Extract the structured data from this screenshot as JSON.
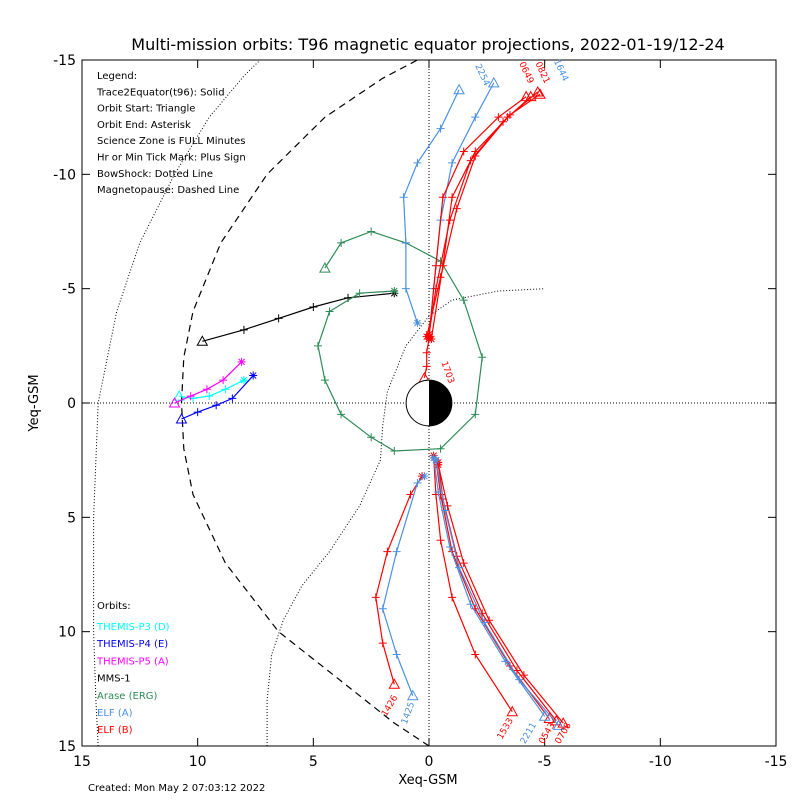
{
  "chart_data": {
    "type": "line",
    "title": "Multi-mission orbits: T96 magnetic equator projections, 2022-01-19/12-24",
    "xlabel": "Xeq-GSM",
    "ylabel": "Yeq-GSM",
    "xlim": [
      15,
      -15
    ],
    "ylim": [
      15,
      -15
    ],
    "x_ticks": [
      15,
      10,
      5,
      0,
      -5,
      -10,
      -15
    ],
    "x_tick_labels": [
      "15",
      "10",
      "5",
      "0",
      "-5",
      "-10",
      "-15"
    ],
    "y_ticks": [
      -15,
      -10,
      -5,
      0,
      5,
      10,
      15
    ],
    "y_tick_labels": [
      "-15",
      "-10",
      "-5",
      "0",
      "5",
      "10",
      "15"
    ],
    "grid": false,
    "zero_lines": "dotted",
    "legend_lines": [
      "Legend:",
      "Trace2Equator(t96): Solid",
      "Orbit Start: Triangle",
      "Orbit End: Asterisk",
      "Science Zone is FULL Minutes",
      "Hr or Min Tick Mark: Plus Sign",
      "BowShock: Dotted Line",
      "Magnetopause: Dashed Line"
    ],
    "orbits_header": "Orbits:",
    "orbits_legend": [
      {
        "name": "THEMIS-P3 (D)",
        "color": "#00ffff"
      },
      {
        "name": "THEMIS-P4 (E)",
        "color": "#0000ff"
      },
      {
        "name": "THEMIS-P5 (A)",
        "color": "#ff00ff"
      },
      {
        "name": "MMS-1",
        "color": "#000000"
      },
      {
        "name": "Arase (ERG)",
        "color": "#2e8b57"
      },
      {
        "name": "ELF (A)",
        "color": "#4a90e2"
      },
      {
        "name": "ELF (B)",
        "color": "#ff0000"
      }
    ],
    "footer": "Created: Mon May  2 07:03:12 2022",
    "bow_shock": [
      [
        7.0,
        15
      ],
      [
        7.0,
        13
      ],
      [
        6.8,
        11
      ],
      [
        6.3,
        9.5
      ],
      [
        5.5,
        8
      ],
      [
        4.3,
        6.5
      ],
      [
        3.0,
        4.5
      ],
      [
        2.1,
        2.5
      ],
      [
        2.0,
        1.0
      ],
      [
        1.8,
        -0.5
      ],
      [
        1.0,
        -2.5
      ],
      [
        0.0,
        -3.8
      ],
      [
        -1.0,
        -4.5
      ],
      [
        -3.0,
        -4.9
      ],
      [
        -5.0,
        -5.0
      ]
    ],
    "bow_shock_far": [
      [
        14.3,
        15
      ],
      [
        14.4,
        13
      ],
      [
        14.5,
        10
      ],
      [
        14.5,
        5
      ],
      [
        14.3,
        0
      ],
      [
        13.5,
        -4
      ],
      [
        12.5,
        -7
      ],
      [
        11.0,
        -10
      ],
      [
        9.5,
        -12.5
      ],
      [
        8.0,
        -14.3
      ],
      [
        7.3,
        -15
      ]
    ],
    "magnetopause": [
      [
        0.0,
        15.0
      ],
      [
        1.5,
        14.0
      ],
      [
        4.0,
        12.0
      ],
      [
        6.5,
        10.0
      ],
      [
        8.8,
        7.0
      ],
      [
        10.2,
        4.0
      ],
      [
        10.6,
        2.0
      ],
      [
        10.7,
        0.0
      ],
      [
        10.6,
        -2.0
      ],
      [
        10.2,
        -4.0
      ],
      [
        9.0,
        -7.0
      ],
      [
        7.0,
        -10.0
      ],
      [
        4.5,
        -12.5
      ],
      [
        2.0,
        -14.2
      ],
      [
        0.5,
        -15.0
      ]
    ],
    "series": [
      {
        "name": "THEMIS-P3 (D)",
        "color": "#00ffff",
        "points": [
          [
            10.8,
            -0.3
          ],
          [
            10.2,
            -0.2
          ],
          [
            9.5,
            -0.3
          ],
          [
            8.8,
            -0.6
          ],
          [
            8.0,
            -1.0
          ]
        ]
      },
      {
        "name": "THEMIS-P4 (E)",
        "color": "#0000ff",
        "points": [
          [
            10.7,
            0.7
          ],
          [
            10.0,
            0.4
          ],
          [
            9.2,
            0.1
          ],
          [
            8.5,
            -0.2
          ],
          [
            7.6,
            -1.2
          ]
        ]
      },
      {
        "name": "THEMIS-P5 (A)",
        "color": "#ff00ff",
        "points": [
          [
            11.0,
            0.0
          ],
          [
            10.3,
            -0.3
          ],
          [
            9.6,
            -0.6
          ],
          [
            8.9,
            -1.0
          ],
          [
            8.1,
            -1.8
          ]
        ]
      },
      {
        "name": "MMS-1",
        "color": "#000000",
        "points": [
          [
            9.8,
            -2.7
          ],
          [
            8.0,
            -3.2
          ],
          [
            6.5,
            -3.7
          ],
          [
            5.0,
            -4.2
          ],
          [
            3.5,
            -4.6
          ],
          [
            1.5,
            -4.8
          ]
        ]
      },
      {
        "name": "Arase (ERG)",
        "color": "#2e8b57",
        "points": [
          [
            4.5,
            -5.9
          ],
          [
            3.8,
            -7.0
          ],
          [
            2.5,
            -7.5
          ],
          [
            1.0,
            -7.0
          ],
          [
            -0.5,
            -6.2
          ],
          [
            -1.5,
            -4.5
          ],
          [
            -2.3,
            -2.0
          ],
          [
            -2.0,
            0.5
          ],
          [
            -0.5,
            2.0
          ],
          [
            1.5,
            2.1
          ],
          [
            2.5,
            1.5
          ],
          [
            3.8,
            0.5
          ],
          [
            4.5,
            -1.0
          ],
          [
            4.8,
            -2.5
          ],
          [
            4.3,
            -4.0
          ],
          [
            3.0,
            -4.8
          ],
          [
            1.5,
            -4.9
          ]
        ]
      },
      {
        "name": "ELF (A)",
        "color": "#4a90e2",
        "points": [
          [
            -1.3,
            -13.7
          ],
          [
            -0.5,
            -12.0
          ],
          [
            0.5,
            -10.5
          ],
          [
            1.1,
            -9.0
          ],
          [
            1.0,
            -7.0
          ],
          [
            1.0,
            -5.0
          ],
          [
            0.5,
            -3.5
          ]
        ]
      },
      {
        "name": "ELF (A)",
        "color": "#4a90e2",
        "points": [
          [
            -2.8,
            -14.0
          ],
          [
            -2.0,
            -12.5
          ],
          [
            -1.0,
            -10.5
          ],
          [
            -0.5,
            -8.0
          ],
          [
            -0.2,
            -5.0
          ],
          [
            0.0,
            -2.8
          ]
        ]
      },
      {
        "name": "ELF (B)",
        "color": "#ff0000",
        "points": [
          [
            -4.2,
            -13.4
          ],
          [
            -3.0,
            -12.5
          ],
          [
            -1.5,
            -11.0
          ],
          [
            -0.6,
            -9.0
          ],
          [
            -0.3,
            -6.0
          ],
          [
            0.0,
            -2.9
          ]
        ]
      },
      {
        "name": "ELF (B)",
        "color": "#ff0000",
        "points": [
          [
            -4.8,
            -13.5
          ],
          [
            -3.5,
            -12.6
          ],
          [
            -2.0,
            -11.0
          ],
          [
            -1.0,
            -9.0
          ],
          [
            -0.6,
            -6.0
          ],
          [
            -0.1,
            -2.8
          ]
        ]
      },
      {
        "name": "ELF (B)",
        "color": "#ff0000",
        "points": [
          [
            -4.4,
            -13.4
          ],
          [
            -3.2,
            -12.3
          ],
          [
            -1.8,
            -10.6
          ],
          [
            -0.9,
            -8.0
          ],
          [
            -0.3,
            -5.0
          ],
          [
            0.0,
            -3.0
          ]
        ]
      },
      {
        "name": "ELF (B)",
        "color": "#ff0000",
        "points": [
          [
            -4.7,
            -13.6
          ],
          [
            -3.4,
            -12.5
          ],
          [
            -2.0,
            -10.8
          ],
          [
            -1.2,
            -8.5
          ],
          [
            -0.5,
            -5.5
          ],
          [
            0.1,
            -2.9
          ]
        ]
      },
      {
        "name": "ELF (B)",
        "color": "#ff0000",
        "points": [
          [
            0.2,
            -1.1
          ],
          [
            0.1,
            -1.6
          ],
          [
            0.1,
            -2.2
          ],
          [
            0.0,
            -2.8
          ]
        ]
      },
      {
        "name": "ELF (B)",
        "color": "#ff0000",
        "points": [
          [
            1.5,
            12.3
          ],
          [
            2.0,
            10.5
          ],
          [
            2.3,
            8.5
          ],
          [
            1.8,
            6.5
          ],
          [
            0.8,
            4.0
          ],
          [
            0.3,
            3.2
          ]
        ]
      },
      {
        "name": "ELF (A)",
        "color": "#4a90e2",
        "points": [
          [
            0.7,
            12.8
          ],
          [
            1.4,
            11.0
          ],
          [
            2.0,
            9.0
          ],
          [
            1.4,
            6.5
          ],
          [
            0.5,
            3.5
          ],
          [
            0.2,
            3.2
          ]
        ]
      },
      {
        "name": "ELF (B)",
        "color": "#ff0000",
        "points": [
          [
            -3.6,
            13.5
          ],
          [
            -2.0,
            11.0
          ],
          [
            -1.0,
            8.5
          ],
          [
            -0.5,
            6.0
          ],
          [
            -0.3,
            4.0
          ],
          [
            -0.2,
            2.3
          ]
        ]
      },
      {
        "name": "ELF (B)",
        "color": "#ff0000",
        "points": [
          [
            -5.2,
            13.8
          ],
          [
            -3.5,
            11.5
          ],
          [
            -2.0,
            9.0
          ],
          [
            -1.0,
            6.5
          ],
          [
            -0.5,
            4.0
          ],
          [
            -0.3,
            2.5
          ]
        ]
      },
      {
        "name": "ELF (B)",
        "color": "#ff0000",
        "points": [
          [
            -5.5,
            13.9
          ],
          [
            -3.8,
            11.7
          ],
          [
            -2.3,
            9.2
          ],
          [
            -1.2,
            6.7
          ],
          [
            -0.6,
            4.2
          ],
          [
            -0.4,
            2.6
          ]
        ]
      },
      {
        "name": "ELF (A)",
        "color": "#4a90e2",
        "points": [
          [
            -5.0,
            13.7
          ],
          [
            -3.3,
            11.3
          ],
          [
            -1.8,
            8.8
          ],
          [
            -0.9,
            6.3
          ],
          [
            -0.4,
            3.9
          ],
          [
            -0.2,
            2.4
          ]
        ]
      },
      {
        "name": "ELF (B)",
        "color": "#ff0000",
        "points": [
          [
            -5.8,
            14.0
          ],
          [
            -4.1,
            11.9
          ],
          [
            -2.6,
            9.5
          ],
          [
            -1.5,
            7.0
          ],
          [
            -0.8,
            4.5
          ],
          [
            -0.4,
            2.7
          ]
        ]
      },
      {
        "name": "ELF (A)",
        "color": "#4a90e2",
        "points": [
          [
            -5.6,
            14.1
          ],
          [
            -3.9,
            12.1
          ],
          [
            -2.4,
            9.6
          ],
          [
            -1.3,
            7.2
          ],
          [
            -0.7,
            4.7
          ],
          [
            -0.3,
            2.5
          ]
        ]
      }
    ],
    "orbit_time_labels": [
      {
        "text": "2254",
        "color": "#4a90e2",
        "x": -2.2,
        "y": -14.3,
        "angle": 65
      },
      {
        "text": "0649",
        "color": "#ff0000",
        "x": -4.1,
        "y": -14.4,
        "angle": 65
      },
      {
        "text": "1644",
        "color": "#4a90e2",
        "x": -5.6,
        "y": -14.5,
        "angle": 65
      },
      {
        "text": "0821",
        "color": "#ff0000",
        "x": -4.8,
        "y": -14.4,
        "angle": 65
      },
      {
        "text": "1703",
        "color": "#ff0000",
        "x": -0.7,
        "y": -1.3,
        "angle": 70
      },
      {
        "text": "1426",
        "color": "#ff0000",
        "x": 1.6,
        "y": 13.3,
        "angle": -60
      },
      {
        "text": "1425",
        "color": "#4a90e2",
        "x": 0.8,
        "y": 13.6,
        "angle": -70
      },
      {
        "text": "1533",
        "color": "#ff0000",
        "x": -3.4,
        "y": 14.3,
        "angle": -60
      },
      {
        "text": "2211",
        "color": "#4a90e2",
        "x": -4.4,
        "y": 14.5,
        "angle": -60
      },
      {
        "text": "0543",
        "color": "#ff0000",
        "x": -5.2,
        "y": 14.5,
        "angle": -60
      },
      {
        "text": "0708",
        "color": "#ff0000",
        "x": -5.9,
        "y": 14.5,
        "angle": -60
      }
    ]
  }
}
